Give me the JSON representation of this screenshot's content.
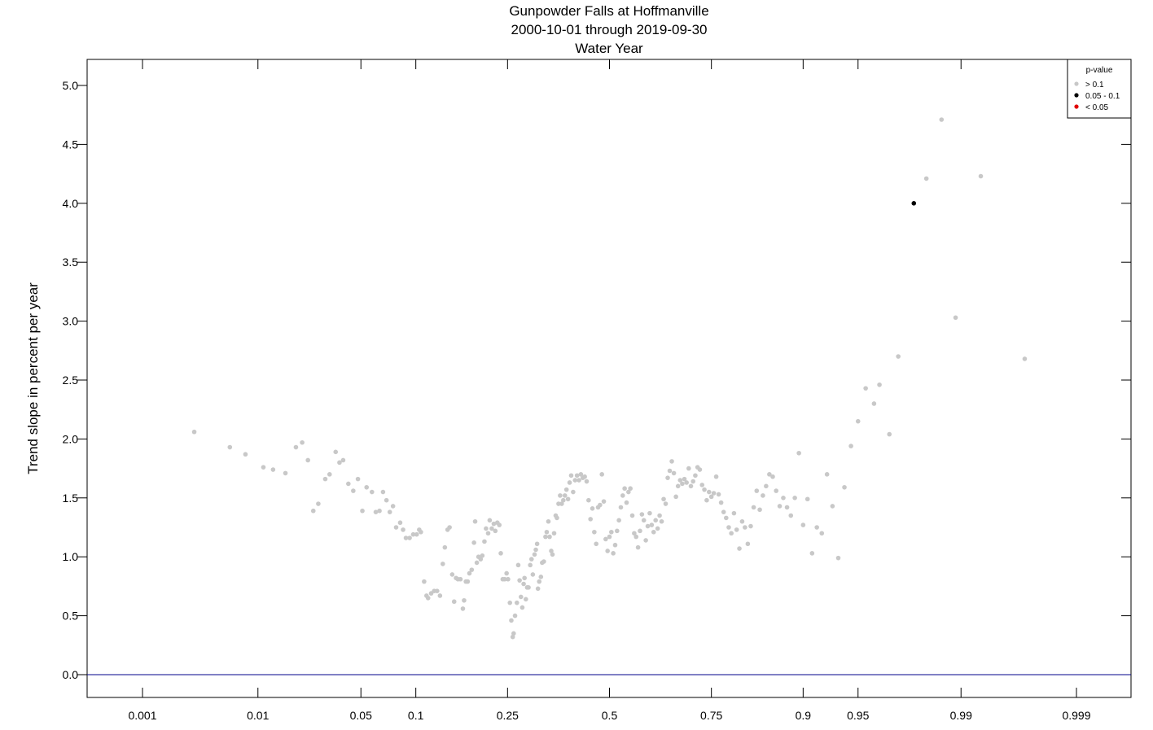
{
  "chart_data": {
    "type": "scatter",
    "title": "Gunpowder Falls at Hoffmanville",
    "subtitle1": "2000-10-01 through 2019-09-30",
    "subtitle2": "Water Year",
    "xlabel": "",
    "ylabel": "Trend slope in percent per year",
    "x_scale": "normal-probability",
    "x_ticks": [
      {
        "p": 0.001,
        "label": "0.001"
      },
      {
        "p": 0.01,
        "label": "0.01"
      },
      {
        "p": 0.05,
        "label": "0.05"
      },
      {
        "p": 0.1,
        "label": "0.1"
      },
      {
        "p": 0.25,
        "label": "0.25"
      },
      {
        "p": 0.5,
        "label": "0.5"
      },
      {
        "p": 0.75,
        "label": "0.75"
      },
      {
        "p": 0.9,
        "label": "0.9"
      },
      {
        "p": 0.95,
        "label": "0.95"
      },
      {
        "p": 0.99,
        "label": "0.99"
      },
      {
        "p": 0.999,
        "label": "0.999"
      }
    ],
    "y_ticks": [
      "0.0",
      "0.5",
      "1.0",
      "1.5",
      "2.0",
      "2.5",
      "3.0",
      "3.5",
      "4.0",
      "4.5",
      "5.0"
    ],
    "ylim": [
      -0.2,
      5.2
    ],
    "zero_line": 0,
    "legend": {
      "position": "top-right",
      "title": "p-value",
      "entries": [
        {
          "label": "> 0.1",
          "color": "#c8c8c8"
        },
        {
          "label": "0.05 - 0.1",
          "color": "#000000"
        },
        {
          "label": "< 0.05",
          "color": "#e00000"
        }
      ]
    },
    "colors": {
      "gt_0_1": "#c8c8c8",
      "between": "#000000",
      "lt_0_05": "#e00000",
      "zero_line": "#00008b"
    },
    "series": [
      {
        "name": "> 0.1",
        "color": "#c8c8c8",
        "points": [
          [
            0.003,
            2.06
          ],
          [
            0.006,
            1.93
          ],
          [
            0.008,
            1.87
          ],
          [
            0.011,
            1.76
          ],
          [
            0.013,
            1.74
          ],
          [
            0.016,
            1.71
          ],
          [
            0.019,
            1.93
          ],
          [
            0.021,
            1.97
          ],
          [
            0.023,
            1.82
          ],
          [
            0.025,
            1.39
          ],
          [
            0.027,
            1.45
          ],
          [
            0.03,
            1.66
          ],
          [
            0.032,
            1.7
          ],
          [
            0.035,
            1.89
          ],
          [
            0.037,
            1.8
          ],
          [
            0.039,
            1.82
          ],
          [
            0.042,
            1.62
          ],
          [
            0.045,
            1.56
          ],
          [
            0.048,
            1.66
          ],
          [
            0.051,
            1.39
          ],
          [
            0.054,
            1.59
          ],
          [
            0.058,
            1.55
          ],
          [
            0.061,
            1.38
          ],
          [
            0.064,
            1.39
          ],
          [
            0.067,
            1.55
          ],
          [
            0.07,
            1.48
          ],
          [
            0.073,
            1.38
          ],
          [
            0.076,
            1.43
          ],
          [
            0.079,
            1.25
          ],
          [
            0.083,
            1.29
          ],
          [
            0.086,
            1.23
          ],
          [
            0.089,
            1.16
          ],
          [
            0.093,
            1.16
          ],
          [
            0.097,
            1.19
          ],
          [
            0.101,
            1.19
          ],
          [
            0.104,
            1.23
          ],
          [
            0.106,
            1.21
          ],
          [
            0.11,
            0.79
          ],
          [
            0.113,
            0.67
          ],
          [
            0.115,
            0.65
          ],
          [
            0.119,
            0.69
          ],
          [
            0.123,
            0.71
          ],
          [
            0.127,
            0.71
          ],
          [
            0.131,
            0.67
          ],
          [
            0.135,
            0.94
          ],
          [
            0.138,
            1.08
          ],
          [
            0.142,
            1.23
          ],
          [
            0.145,
            1.25
          ],
          [
            0.149,
            0.85
          ],
          [
            0.152,
            0.62
          ],
          [
            0.155,
            0.82
          ],
          [
            0.158,
            0.81
          ],
          [
            0.162,
            0.81
          ],
          [
            0.166,
            0.56
          ],
          [
            0.168,
            0.63
          ],
          [
            0.171,
            0.79
          ],
          [
            0.174,
            0.79
          ],
          [
            0.177,
            0.86
          ],
          [
            0.181,
            0.89
          ],
          [
            0.185,
            1.12
          ],
          [
            0.187,
            1.3
          ],
          [
            0.19,
            0.95
          ],
          [
            0.193,
            1.0
          ],
          [
            0.197,
            0.98
          ],
          [
            0.2,
            1.01
          ],
          [
            0.204,
            1.13
          ],
          [
            0.207,
            1.24
          ],
          [
            0.211,
            1.2
          ],
          [
            0.214,
            1.31
          ],
          [
            0.218,
            1.24
          ],
          [
            0.222,
            1.28
          ],
          [
            0.225,
            1.22
          ],
          [
            0.229,
            1.29
          ],
          [
            0.233,
            1.27
          ],
          [
            0.236,
            1.03
          ],
          [
            0.24,
            0.81
          ],
          [
            0.244,
            0.81
          ],
          [
            0.248,
            0.86
          ],
          [
            0.251,
            0.81
          ],
          [
            0.255,
            0.61
          ],
          [
            0.258,
            0.46
          ],
          [
            0.261,
            0.32
          ],
          [
            0.263,
            0.35
          ],
          [
            0.266,
            0.5
          ],
          [
            0.27,
            0.61
          ],
          [
            0.273,
            0.93
          ],
          [
            0.276,
            0.8
          ],
          [
            0.279,
            0.66
          ],
          [
            0.282,
            0.57
          ],
          [
            0.285,
            0.77
          ],
          [
            0.287,
            0.82
          ],
          [
            0.29,
            0.64
          ],
          [
            0.293,
            0.74
          ],
          [
            0.296,
            0.74
          ],
          [
            0.3,
            0.93
          ],
          [
            0.303,
            0.98
          ],
          [
            0.306,
            0.85
          ],
          [
            0.31,
            1.02
          ],
          [
            0.313,
            1.06
          ],
          [
            0.316,
            1.11
          ],
          [
            0.318,
            0.73
          ],
          [
            0.321,
            0.79
          ],
          [
            0.325,
            0.83
          ],
          [
            0.328,
            0.95
          ],
          [
            0.332,
            0.96
          ],
          [
            0.336,
            1.17
          ],
          [
            0.339,
            1.21
          ],
          [
            0.343,
            1.3
          ],
          [
            0.346,
            1.17
          ],
          [
            0.35,
            1.05
          ],
          [
            0.353,
            1.02
          ],
          [
            0.357,
            1.2
          ],
          [
            0.361,
            1.35
          ],
          [
            0.364,
            1.33
          ],
          [
            0.368,
            1.45
          ],
          [
            0.372,
            1.52
          ],
          [
            0.376,
            1.45
          ],
          [
            0.38,
            1.48
          ],
          [
            0.384,
            1.52
          ],
          [
            0.388,
            1.57
          ],
          [
            0.392,
            1.49
          ],
          [
            0.396,
            1.63
          ],
          [
            0.4,
            1.69
          ],
          [
            0.405,
            1.55
          ],
          [
            0.41,
            1.65
          ],
          [
            0.415,
            1.69
          ],
          [
            0.42,
            1.65
          ],
          [
            0.425,
            1.7
          ],
          [
            0.43,
            1.67
          ],
          [
            0.435,
            1.68
          ],
          [
            0.44,
            1.64
          ],
          [
            0.445,
            1.48
          ],
          [
            0.45,
            1.32
          ],
          [
            0.455,
            1.41
          ],
          [
            0.46,
            1.21
          ],
          [
            0.465,
            1.11
          ],
          [
            0.47,
            1.42
          ],
          [
            0.475,
            1.44
          ],
          [
            0.48,
            1.7
          ],
          [
            0.485,
            1.47
          ],
          [
            0.49,
            1.15
          ],
          [
            0.495,
            1.05
          ],
          [
            0.5,
            1.17
          ],
          [
            0.505,
            1.21
          ],
          [
            0.51,
            1.03
          ],
          [
            0.515,
            1.1
          ],
          [
            0.52,
            1.22
          ],
          [
            0.525,
            1.31
          ],
          [
            0.53,
            1.42
          ],
          [
            0.535,
            1.52
          ],
          [
            0.54,
            1.58
          ],
          [
            0.545,
            1.46
          ],
          [
            0.55,
            1.55
          ],
          [
            0.555,
            1.58
          ],
          [
            0.56,
            1.35
          ],
          [
            0.565,
            1.2
          ],
          [
            0.57,
            1.17
          ],
          [
            0.575,
            1.08
          ],
          [
            0.58,
            1.22
          ],
          [
            0.585,
            1.36
          ],
          [
            0.59,
            1.31
          ],
          [
            0.595,
            1.14
          ],
          [
            0.6,
            1.26
          ],
          [
            0.605,
            1.37
          ],
          [
            0.61,
            1.27
          ],
          [
            0.615,
            1.21
          ],
          [
            0.62,
            1.31
          ],
          [
            0.625,
            1.24
          ],
          [
            0.63,
            1.35
          ],
          [
            0.635,
            1.3
          ],
          [
            0.64,
            1.49
          ],
          [
            0.645,
            1.45
          ],
          [
            0.65,
            1.67
          ],
          [
            0.655,
            1.73
          ],
          [
            0.66,
            1.81
          ],
          [
            0.665,
            1.71
          ],
          [
            0.67,
            1.51
          ],
          [
            0.675,
            1.6
          ],
          [
            0.68,
            1.65
          ],
          [
            0.685,
            1.62
          ],
          [
            0.69,
            1.66
          ],
          [
            0.695,
            1.63
          ],
          [
            0.7,
            1.75
          ],
          [
            0.705,
            1.6
          ],
          [
            0.71,
            1.64
          ],
          [
            0.715,
            1.69
          ],
          [
            0.72,
            1.76
          ],
          [
            0.725,
            1.74
          ],
          [
            0.73,
            1.61
          ],
          [
            0.735,
            1.57
          ],
          [
            0.74,
            1.48
          ],
          [
            0.745,
            1.55
          ],
          [
            0.75,
            1.51
          ],
          [
            0.755,
            1.54
          ],
          [
            0.76,
            1.68
          ],
          [
            0.765,
            1.53
          ],
          [
            0.77,
            1.46
          ],
          [
            0.775,
            1.38
          ],
          [
            0.78,
            1.33
          ],
          [
            0.785,
            1.25
          ],
          [
            0.79,
            1.2
          ],
          [
            0.795,
            1.37
          ],
          [
            0.8,
            1.23
          ],
          [
            0.805,
            1.07
          ],
          [
            0.81,
            1.3
          ],
          [
            0.815,
            1.25
          ],
          [
            0.82,
            1.11
          ],
          [
            0.825,
            1.26
          ],
          [
            0.83,
            1.42
          ],
          [
            0.835,
            1.56
          ],
          [
            0.84,
            1.4
          ],
          [
            0.845,
            1.52
          ],
          [
            0.85,
            1.6
          ],
          [
            0.855,
            1.7
          ],
          [
            0.86,
            1.68
          ],
          [
            0.865,
            1.56
          ],
          [
            0.87,
            1.43
          ],
          [
            0.875,
            1.5
          ],
          [
            0.88,
            1.42
          ],
          [
            0.885,
            1.35
          ],
          [
            0.89,
            1.5
          ],
          [
            0.895,
            1.88
          ],
          [
            0.9,
            1.27
          ],
          [
            0.905,
            1.49
          ],
          [
            0.91,
            1.03
          ],
          [
            0.915,
            1.25
          ],
          [
            0.92,
            1.2
          ],
          [
            0.925,
            1.7
          ],
          [
            0.93,
            1.43
          ],
          [
            0.935,
            0.99
          ],
          [
            0.94,
            1.59
          ],
          [
            0.945,
            1.94
          ],
          [
            0.95,
            2.15
          ],
          [
            0.955,
            2.43
          ],
          [
            0.96,
            2.3
          ],
          [
            0.963,
            2.46
          ],
          [
            0.968,
            2.04
          ],
          [
            0.972,
            2.7
          ],
          [
            0.982,
            4.21
          ],
          [
            0.986,
            4.71
          ],
          [
            0.989,
            3.03
          ],
          [
            0.993,
            4.23
          ],
          [
            0.997,
            2.68
          ]
        ]
      },
      {
        "name": "0.05 - 0.1",
        "color": "#000000",
        "points": [
          [
            0.978,
            4.0
          ]
        ]
      }
    ]
  }
}
